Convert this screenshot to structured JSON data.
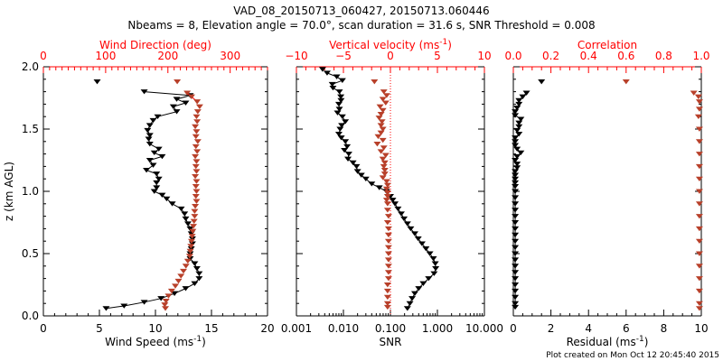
{
  "colors": {
    "axis_red": "#ff0000",
    "data_red": "#b8402a",
    "black": "#000000"
  },
  "title_line1": "VAD_08_20150713_060427, 20150713.060446",
  "title_line2": "Nbeams = 8, Elevation angle = 70.0°, scan duration = 31.6 s, SNR Threshold = 0.008",
  "footer": "Plot created on Mon Oct 12 20:45:40 2015",
  "chart_data": [
    {
      "type": "line",
      "panel": "wind",
      "ylabel": "z (km AGL)",
      "ylim": [
        0,
        2
      ],
      "yticks": [
        "0.0",
        "0.5",
        "1.0",
        "1.5",
        "2.0"
      ],
      "bottom_axis": {
        "label": "Wind Speed (ms",
        "label_sup": "-1",
        "label_end": ")",
        "range": [
          0,
          20
        ],
        "ticks": [
          "0",
          "5",
          "10",
          "15",
          "20"
        ]
      },
      "top_axis": {
        "label": "Wind Direction (deg)",
        "range": [
          0,
          360
        ],
        "ticks": [
          "0",
          "100",
          "200",
          "300"
        ]
      },
      "series": [
        {
          "name": "Wind Speed",
          "axis": "bottom",
          "color": "black",
          "z": [
            1.88,
            1.8,
            1.77,
            1.74,
            1.71,
            1.68,
            1.64,
            1.6,
            1.57,
            1.53,
            1.49,
            1.45,
            1.42,
            1.38,
            1.34,
            1.31,
            1.28,
            1.25,
            1.21,
            1.17,
            1.14,
            1.1,
            1.07,
            1.03,
            1.0,
            0.97,
            0.94,
            0.9,
            0.86,
            0.82,
            0.78,
            0.74,
            0.7,
            0.66,
            0.62,
            0.58,
            0.54,
            0.5,
            0.46,
            0.42,
            0.38,
            0.34,
            0.3,
            0.26,
            0.22,
            0.18,
            0.14,
            0.11,
            0.08,
            0.06
          ],
          "values": [
            4.8,
            9.0,
            13.1,
            11.9,
            12.7,
            11.6,
            11.9,
            10.2,
            9.8,
            9.5,
            9.3,
            9.5,
            9.4,
            9.5,
            10.3,
            9.9,
            10.6,
            9.5,
            9.8,
            9.2,
            10.1,
            10.3,
            10.1,
            10.1,
            9.9,
            10.6,
            11.0,
            11.5,
            12.3,
            12.6,
            12.7,
            12.9,
            13.1,
            13.2,
            13.3,
            13.3,
            13.2,
            13.1,
            13.1,
            13.5,
            13.7,
            13.9,
            13.9,
            13.5,
            12.7,
            11.7,
            10.5,
            9.0,
            7.2,
            5.6
          ]
        },
        {
          "name": "Wind Direction",
          "axis": "top",
          "color": "red",
          "z": [
            1.88,
            1.79,
            1.76,
            1.72,
            1.68,
            1.64,
            1.6,
            1.56,
            1.52,
            1.48,
            1.44,
            1.4,
            1.36,
            1.32,
            1.28,
            1.24,
            1.2,
            1.16,
            1.12,
            1.08,
            1.04,
            1.0,
            0.96,
            0.92,
            0.88,
            0.84,
            0.8,
            0.76,
            0.72,
            0.68,
            0.64,
            0.6,
            0.56,
            0.52,
            0.48,
            0.44,
            0.4,
            0.36,
            0.32,
            0.28,
            0.24,
            0.2,
            0.16,
            0.12,
            0.09,
            0.06
          ],
          "values": [
            215,
            231,
            238,
            247,
            251,
            248,
            246,
            247,
            244,
            246,
            245,
            248,
            245,
            247,
            244,
            246,
            245,
            246,
            244,
            246,
            245,
            246,
            245,
            246,
            244,
            243,
            243,
            242,
            241,
            240,
            239,
            238,
            237,
            236,
            235,
            232,
            229,
            225,
            221,
            217,
            212,
            206,
            201,
            197,
            195,
            196
          ]
        }
      ]
    },
    {
      "type": "line",
      "panel": "snr",
      "ylim": [
        0,
        2
      ],
      "bottom_axis": {
        "label": "SNR",
        "range": [
          0.001,
          10
        ],
        "scale": "log",
        "ticks": [
          "0.001",
          "0.010",
          "0.100",
          "1.000",
          "10.000"
        ]
      },
      "top_axis": {
        "label": "Vertical velocity (ms",
        "label_sup": "-1",
        "label_end": ")",
        "range": [
          -10,
          10
        ],
        "ticks": [
          "−10",
          "−5",
          "0",
          "5",
          "10"
        ]
      },
      "series": [
        {
          "name": "SNR",
          "axis": "bottom",
          "color": "black",
          "z": [
            1.98,
            1.95,
            1.92,
            1.89,
            1.86,
            1.83,
            1.8,
            1.76,
            1.73,
            1.7,
            1.66,
            1.63,
            1.6,
            1.56,
            1.53,
            1.5,
            1.46,
            1.43,
            1.4,
            1.36,
            1.33,
            1.3,
            1.26,
            1.23,
            1.2,
            1.16,
            1.13,
            1.1,
            1.06,
            1.03,
            1.0,
            0.96,
            0.93,
            0.9,
            0.86,
            0.82,
            0.78,
            0.74,
            0.7,
            0.66,
            0.62,
            0.58,
            0.54,
            0.5,
            0.46,
            0.42,
            0.38,
            0.34,
            0.3,
            0.26,
            0.22,
            0.18,
            0.14,
            0.1,
            0.06
          ],
          "values": [
            0.0036,
            0.0045,
            0.0072,
            0.0095,
            0.0058,
            0.006,
            0.0082,
            0.0088,
            0.0089,
            0.008,
            0.0082,
            0.0075,
            0.0095,
            0.011,
            0.0092,
            0.0085,
            0.008,
            0.009,
            0.011,
            0.012,
            0.0105,
            0.013,
            0.0125,
            0.016,
            0.019,
            0.02,
            0.024,
            0.03,
            0.04,
            0.058,
            0.082,
            0.1,
            0.112,
            0.125,
            0.145,
            0.17,
            0.195,
            0.23,
            0.27,
            0.33,
            0.39,
            0.47,
            0.57,
            0.69,
            0.82,
            0.9,
            0.92,
            0.85,
            0.65,
            0.5,
            0.4,
            0.33,
            0.29,
            0.26,
            0.23
          ]
        },
        {
          "name": "Vertical velocity",
          "axis": "top",
          "color": "red",
          "z": [
            1.88,
            1.8,
            1.77,
            1.74,
            1.71,
            1.68,
            1.65,
            1.62,
            1.59,
            1.56,
            1.53,
            1.5,
            1.47,
            1.44,
            1.41,
            1.38,
            1.35,
            1.32,
            1.29,
            1.26,
            1.23,
            1.2,
            1.17,
            1.14,
            1.11,
            1.08,
            1.05,
            1.02,
            0.99,
            0.96,
            0.93,
            0.9,
            0.85,
            0.8,
            0.75,
            0.7,
            0.65,
            0.6,
            0.55,
            0.5,
            0.45,
            0.4,
            0.35,
            0.3,
            0.25,
            0.2,
            0.15,
            0.1,
            0.07
          ],
          "values": [
            -1.7,
            -0.7,
            -0.4,
            -0.8,
            -0.5,
            -1.1,
            -0.8,
            -1.0,
            -1.2,
            -0.9,
            -1.0,
            -0.8,
            -1.0,
            -1.3,
            -0.8,
            -1.4,
            -0.7,
            -1.0,
            -0.5,
            -0.8,
            -0.6,
            -0.7,
            -0.6,
            -0.6,
            -0.8,
            -0.4,
            -0.3,
            -0.4,
            -0.3,
            -0.3,
            -0.4,
            -0.3,
            -0.3,
            -0.2,
            -0.3,
            -0.2,
            -0.2,
            -0.2,
            -0.2,
            -0.2,
            -0.2,
            -0.2,
            -0.2,
            -0.2,
            -0.3,
            -0.3,
            -0.3,
            -0.3,
            -0.3
          ]
        }
      ]
    },
    {
      "type": "line",
      "panel": "residual",
      "ylim": [
        0,
        2
      ],
      "bottom_axis": {
        "label": "Residual (ms",
        "label_sup": "-1",
        "label_end": ")",
        "range": [
          0,
          10
        ],
        "ticks": [
          "0",
          "2",
          "4",
          "6",
          "8",
          "10"
        ]
      },
      "top_axis": {
        "label": "Correlation",
        "range": [
          0,
          1
        ],
        "ticks": [
          "0.0",
          "0.2",
          "0.4",
          "0.6",
          "0.8",
          "1.0"
        ]
      },
      "series": [
        {
          "name": "Residual",
          "axis": "bottom",
          "color": "black",
          "z": [
            1.88,
            1.79,
            1.76,
            1.73,
            1.7,
            1.67,
            1.64,
            1.61,
            1.58,
            1.55,
            1.52,
            1.49,
            1.46,
            1.43,
            1.4,
            1.37,
            1.34,
            1.31,
            1.28,
            1.25,
            1.22,
            1.19,
            1.16,
            1.13,
            1.1,
            1.07,
            1.04,
            1.0,
            0.95,
            0.9,
            0.85,
            0.8,
            0.75,
            0.7,
            0.65,
            0.6,
            0.55,
            0.5,
            0.45,
            0.4,
            0.35,
            0.3,
            0.25,
            0.2,
            0.15,
            0.1,
            0.07
          ],
          "values": [
            1.5,
            0.7,
            0.5,
            0.3,
            0.3,
            0.2,
            0.1,
            0.1,
            0.4,
            0.3,
            0.3,
            0.2,
            0.3,
            0.1,
            0.1,
            0.1,
            0.2,
            0.4,
            0.2,
            0.1,
            0.2,
            0.2,
            0.1,
            0.1,
            0.1,
            0.1,
            0.1,
            0.1,
            0.1,
            0.1,
            0.1,
            0.1,
            0.1,
            0.1,
            0.1,
            0.1,
            0.1,
            0.1,
            0.1,
            0.1,
            0.1,
            0.1,
            0.1,
            0.1,
            0.1,
            0.1,
            0.1
          ]
        },
        {
          "name": "Correlation",
          "axis": "top",
          "color": "red",
          "z": [
            1.88,
            1.79,
            1.76,
            1.72,
            1.66,
            1.6,
            1.5,
            1.4,
            1.3,
            1.2,
            1.1,
            1.0,
            0.9,
            0.8,
            0.7,
            0.6,
            0.5,
            0.4,
            0.3,
            0.2,
            0.1,
            0.06
          ],
          "values": [
            0.6,
            0.96,
            0.985,
            0.99,
            0.99,
            0.985,
            0.99,
            0.99,
            0.99,
            0.99,
            0.99,
            0.99,
            0.99,
            0.99,
            0.99,
            0.99,
            0.99,
            0.99,
            0.99,
            0.99,
            0.99,
            0.99
          ]
        }
      ]
    }
  ]
}
